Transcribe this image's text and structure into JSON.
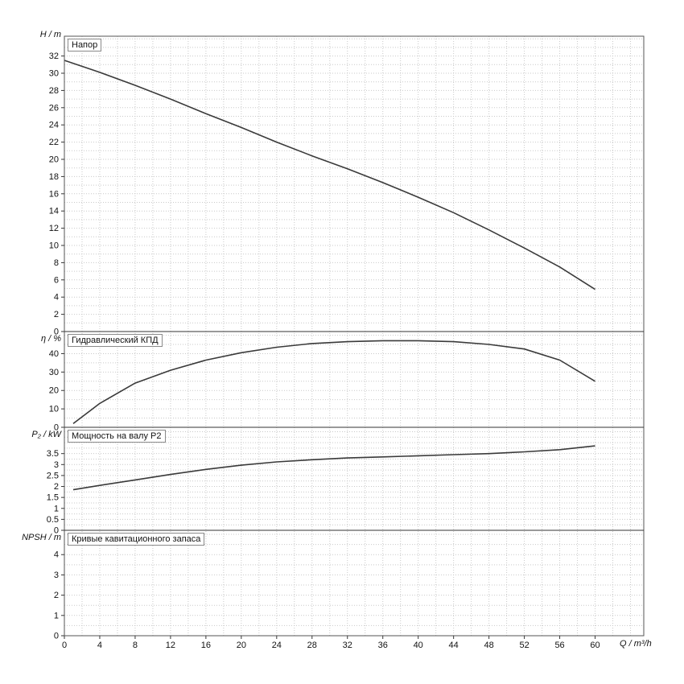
{
  "x_axis": {
    "label": "Q / m³/h",
    "min": 0,
    "max": 65.5,
    "ticks": [
      0,
      4,
      8,
      12,
      16,
      20,
      24,
      28,
      32,
      36,
      40,
      44,
      48,
      52,
      56,
      60
    ],
    "grid_step": 2
  },
  "chart_data": [
    {
      "type": "line",
      "name": "head",
      "panel_title": "Напор",
      "ylabel": "H / m",
      "ylim": [
        0,
        34.3
      ],
      "yticks": [
        0,
        2,
        4,
        6,
        8,
        10,
        12,
        14,
        16,
        18,
        20,
        22,
        24,
        26,
        28,
        30,
        32
      ],
      "grid_step": 1,
      "x": [
        0,
        4,
        8,
        12,
        16,
        20,
        24,
        28,
        32,
        36,
        40,
        44,
        48,
        52,
        56,
        60
      ],
      "y": [
        31.5,
        30.1,
        28.6,
        27.0,
        25.3,
        23.7,
        22.0,
        20.4,
        18.9,
        17.3,
        15.6,
        13.8,
        11.8,
        9.7,
        7.5,
        4.9
      ]
    },
    {
      "type": "line",
      "name": "hydraulic-efficiency",
      "panel_title": "Гидравлический КПД",
      "ylabel": "η / %",
      "ylim": [
        0,
        52
      ],
      "yticks": [
        0,
        10,
        20,
        30,
        40
      ],
      "grid_step": 5,
      "x": [
        1,
        4,
        8,
        12,
        16,
        20,
        24,
        28,
        32,
        36,
        40,
        44,
        48,
        52,
        56,
        60
      ],
      "y": [
        2,
        13,
        24,
        31,
        36.5,
        40.5,
        43.5,
        45.5,
        46.5,
        47,
        47,
        46.5,
        45,
        42.5,
        36.5,
        25
      ]
    },
    {
      "type": "line",
      "name": "shaft-power-p2",
      "panel_title": "Мощность на валу P2",
      "ylabel": "P₂ / kW",
      "ylim": [
        0,
        4.7
      ],
      "yticks": [
        0,
        0.5,
        1,
        1.5,
        2,
        2.5,
        3,
        3.5
      ],
      "grid_step": 0.25,
      "x": [
        1,
        4,
        8,
        12,
        16,
        20,
        24,
        28,
        32,
        36,
        40,
        44,
        48,
        52,
        56,
        60
      ],
      "y": [
        1.85,
        2.05,
        2.3,
        2.55,
        2.78,
        2.97,
        3.12,
        3.22,
        3.3,
        3.35,
        3.4,
        3.45,
        3.5,
        3.58,
        3.68,
        3.85
      ]
    },
    {
      "type": "line",
      "name": "npsh",
      "panel_title": "Кривые кавитационного запаса",
      "ylabel": "NPSH / m",
      "ylim": [
        0,
        5.2
      ],
      "yticks": [
        0,
        1,
        2,
        3,
        4
      ],
      "grid_step": 0.5,
      "x": [],
      "y": []
    }
  ],
  "colors": {
    "curve": "#3a3a3a",
    "grid": "#c9c9c9",
    "axis": "#555555",
    "text": "#111111"
  }
}
